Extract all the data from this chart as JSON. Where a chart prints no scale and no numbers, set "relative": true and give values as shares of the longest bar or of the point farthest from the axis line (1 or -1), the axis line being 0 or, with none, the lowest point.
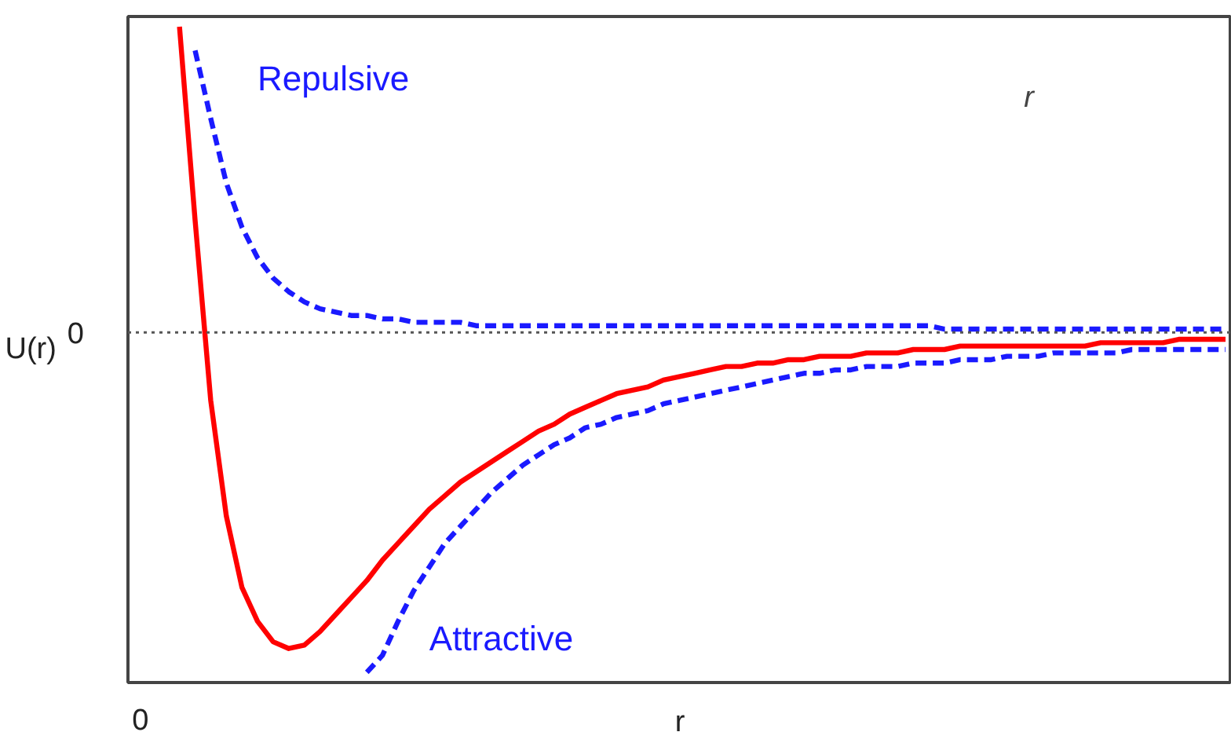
{
  "chart_data": {
    "type": "line",
    "relative": true,
    "ylabel": "U(r)",
    "xlabel": "r",
    "legend": false,
    "grid": false,
    "categories": [
      null,
      null,
      null,
      null,
      null,
      null,
      null,
      null,
      null,
      null,
      null,
      null,
      null,
      null,
      null,
      null,
      null,
      null,
      null,
      null,
      null,
      null,
      null,
      null,
      null,
      null,
      null,
      null,
      null,
      null,
      null,
      null,
      null,
      null,
      null,
      null,
      null,
      null,
      null,
      null,
      null,
      null,
      null,
      null,
      null,
      null,
      null,
      null,
      null,
      null,
      null,
      null,
      null,
      null,
      null,
      null,
      null,
      null,
      null,
      null,
      null,
      null,
      null,
      null,
      null,
      null,
      null,
      null,
      null,
      null,
      null
    ],
    "series": [
      {
        "color": "#ff0000",
        "line_style": "solid",
        "values": [
          null,
          null,
          null,
          0.9,
          0.33,
          -0.2,
          -0.54,
          -0.75,
          -0.85,
          -0.91,
          -0.93,
          -0.92,
          -0.88,
          -0.83,
          -0.78,
          -0.73,
          -0.67,
          -0.62,
          -0.57,
          -0.52,
          -0.48,
          -0.44,
          -0.41,
          -0.38,
          -0.35,
          -0.32,
          -0.29,
          -0.27,
          -0.24,
          -0.22,
          -0.2,
          -0.18,
          -0.17,
          -0.16,
          -0.14,
          -0.13,
          -0.12,
          -0.11,
          -0.1,
          -0.1,
          -0.09,
          -0.09,
          -0.08,
          -0.08,
          -0.07,
          -0.07,
          -0.07,
          -0.06,
          -0.06,
          -0.06,
          -0.05,
          -0.05,
          -0.05,
          -0.04,
          -0.04,
          -0.04,
          -0.04,
          -0.04,
          -0.04,
          -0.04,
          -0.04,
          -0.04,
          -0.03,
          -0.03,
          -0.03,
          -0.03,
          -0.03,
          -0.02,
          -0.02,
          -0.02,
          -0.02
        ]
      },
      {
        "name": "Repulsive",
        "color": "#1a1aff",
        "line_style": "dashed",
        "values": [
          null,
          null,
          null,
          null,
          0.83,
          0.63,
          0.44,
          0.31,
          0.22,
          0.16,
          0.12,
          0.09,
          0.07,
          0.06,
          0.05,
          0.05,
          0.04,
          0.04,
          0.03,
          0.03,
          0.03,
          0.03,
          0.02,
          0.02,
          0.02,
          0.02,
          0.02,
          0.02,
          0.02,
          0.02,
          0.02,
          0.02,
          0.02,
          0.02,
          0.02,
          0.02,
          0.02,
          0.02,
          0.02,
          0.02,
          0.02,
          0.02,
          0.02,
          0.02,
          0.02,
          0.02,
          0.02,
          0.02,
          0.02,
          0.02,
          0.02,
          0.02,
          0.01,
          0.01,
          0.01,
          0.01,
          0.01,
          0.01,
          0.01,
          0.01,
          0.01,
          0.01,
          0.01,
          0.01,
          0.01,
          0.01,
          0.01,
          0.01,
          0.01,
          0.01,
          0.01
        ]
      },
      {
        "name": "Attractive",
        "color": "#1a1aff",
        "line_style": "dashed",
        "values": [
          null,
          null,
          null,
          null,
          null,
          null,
          null,
          null,
          null,
          null,
          null,
          null,
          null,
          null,
          null,
          -1.0,
          -0.95,
          -0.85,
          -0.76,
          -0.69,
          -0.62,
          -0.57,
          -0.52,
          -0.47,
          -0.43,
          -0.39,
          -0.36,
          -0.33,
          -0.31,
          -0.28,
          -0.27,
          -0.25,
          -0.24,
          -0.23,
          -0.21,
          -0.2,
          -0.19,
          -0.18,
          -0.17,
          -0.16,
          -0.15,
          -0.14,
          -0.13,
          -0.12,
          -0.12,
          -0.11,
          -0.11,
          -0.1,
          -0.1,
          -0.1,
          -0.09,
          -0.09,
          -0.09,
          -0.08,
          -0.08,
          -0.08,
          -0.07,
          -0.07,
          -0.07,
          -0.06,
          -0.06,
          -0.06,
          -0.06,
          -0.06,
          -0.05,
          -0.05,
          -0.05,
          -0.05,
          -0.05,
          -0.05,
          -0.05
        ]
      }
    ],
    "ref_lines": [
      {
        "axis": "y",
        "value": 0,
        "label": "0",
        "color": "#555555",
        "line_style": "dotted"
      }
    ],
    "annotations": [
      "0",
      "r"
    ]
  }
}
